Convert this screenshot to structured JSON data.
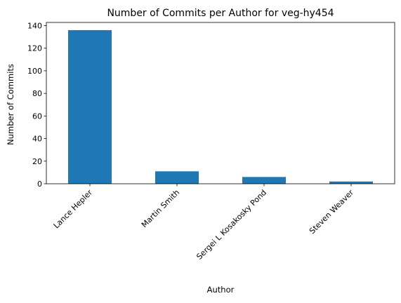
{
  "chart_data": {
    "type": "bar",
    "title": "Number of Commits per Author for veg-hy454",
    "xlabel": "Author",
    "ylabel": "Number of Commits",
    "categories": [
      "Lance Hepler",
      "Martin Smith",
      "Sergei L Kosakosky Pond",
      "Steven Weaver"
    ],
    "values": [
      136,
      11,
      6,
      2
    ],
    "ylim": [
      0,
      142.8
    ],
    "yticks": [
      0,
      20,
      40,
      60,
      80,
      100,
      120,
      140
    ],
    "bar_color": "#1f77b4",
    "grid": false,
    "legend": "none"
  }
}
